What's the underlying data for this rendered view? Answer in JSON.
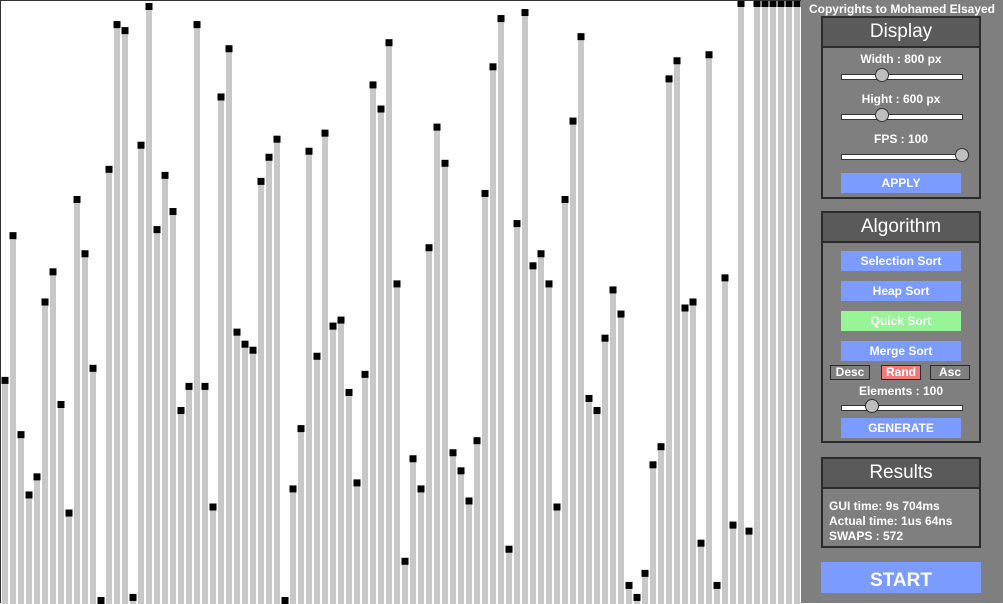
{
  "copyright": "Copyrights to Mohamed Elsayed",
  "display": {
    "title": "Display",
    "width_label": "Width : 800 px",
    "width_value": 0.33,
    "height_label": "Hight : 600 px",
    "height_value": 0.33,
    "fps_label": "FPS : 100",
    "fps_value": 1.0,
    "apply_label": "APPLY"
  },
  "algorithm": {
    "title": "Algorithm",
    "buttons": [
      "Selection Sort",
      "Heap Sort",
      "Quick Sort",
      "Merge Sort"
    ],
    "active_algorithm": "Quick Sort",
    "order_buttons": [
      "Desc",
      "Rand",
      "Asc"
    ],
    "active_order": "Rand",
    "elements_label": "Elements : 100",
    "elements_value": 0.25,
    "generate_label": "GENERATE"
  },
  "results": {
    "title": "Results",
    "gui_time": "GUI time: 9s 704ms",
    "actual_time": "Actual time: 1us 64ns",
    "swaps": "SWAPS : 572"
  },
  "start_label": "START",
  "colors": {
    "bar": "#c8c8c8",
    "marker": "#000000",
    "button": "#7b9bff",
    "active_algorithm": "#97f597",
    "active_order": "#f47a7a",
    "sidebar": "#7f7f7f"
  },
  "bars": {
    "max_value": 600,
    "values": [
      225,
      369,
      171,
      111,
      129,
      303,
      333,
      201,
      93,
      405,
      351,
      237,
      3,
      435,
      579,
      573,
      9,
      459,
      597,
      375,
      429,
      393,
      195,
      219,
      579,
      219,
      99,
      507,
      555,
      273,
      261,
      255,
      423,
      447,
      465,
      1,
      117,
      177,
      453,
      249,
      471,
      279,
      285,
      213,
      123,
      231,
      519,
      495,
      561,
      321,
      45,
      147,
      117,
      357,
      477,
      441,
      153,
      135,
      105,
      165,
      411,
      537,
      585,
      57,
      381,
      591,
      339,
      351,
      321,
      99,
      405,
      483,
      567,
      207,
      195,
      267,
      315,
      291,
      21,
      9,
      33,
      141,
      159,
      525,
      543,
      297,
      303,
      63,
      549,
      21,
      327,
      81,
      603,
      75,
      603,
      603,
      603,
      603,
      603,
      603
    ]
  }
}
